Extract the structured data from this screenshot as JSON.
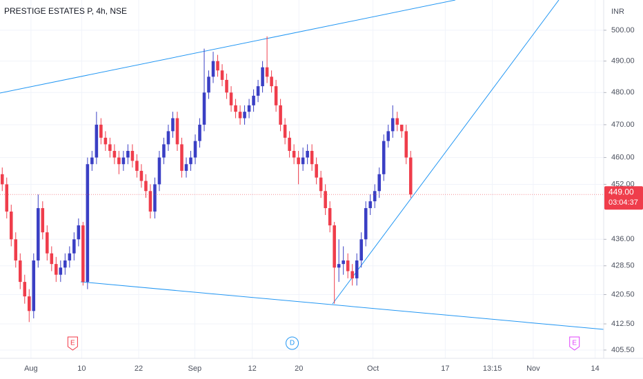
{
  "chart_data": {
    "type": "candlestick",
    "title": "PRESTIGE ESTATES P, 4h, NSE",
    "currency": "INR",
    "log_scale": true,
    "up_color": "#3a3fc4",
    "down_color": "#ef3d4b",
    "xlim": [
      -0.5,
      134
    ],
    "ylim": [
      403.3,
      510
    ],
    "xticks": [
      {
        "value": 6.4,
        "label": "Aug"
      },
      {
        "value": 17.7,
        "label": "10"
      },
      {
        "value": 30.4,
        "label": "22"
      },
      {
        "value": 42.9,
        "label": "Sep"
      },
      {
        "value": 55.7,
        "label": "12"
      },
      {
        "value": 66.1,
        "label": "20"
      },
      {
        "value": 82.6,
        "label": "Oct"
      },
      {
        "value": 98.7,
        "label": "17"
      },
      {
        "value": 109.2,
        "label": "13:15"
      },
      {
        "value": 118.3,
        "label": "Nov"
      },
      {
        "value": 132.1,
        "label": "14"
      }
    ],
    "yticks": [
      {
        "value": 405.5,
        "label": "405.50"
      },
      {
        "value": 412.5,
        "label": "412.50"
      },
      {
        "value": 420.5,
        "label": "420.50"
      },
      {
        "value": 428.5,
        "label": "428.50"
      },
      {
        "value": 436,
        "label": "436.00"
      },
      {
        "value": 452,
        "label": "452.00"
      },
      {
        "value": 460,
        "label": "460.00"
      },
      {
        "value": 470,
        "label": "470.00"
      },
      {
        "value": 480,
        "label": "480.00"
      },
      {
        "value": 490,
        "label": "490.00"
      },
      {
        "value": 500,
        "label": "500.00"
      }
    ],
    "last_price": {
      "value": 449,
      "label": "449.00"
    },
    "countdown": "03:04:37",
    "events": [
      {
        "label": "E",
        "x": 15.7,
        "color": "#f23645"
      },
      {
        "label": "D",
        "x": 64.6,
        "color": "#2196f3"
      },
      {
        "label": "E",
        "x": 127.5,
        "color": "#e040fb"
      }
    ],
    "open": [
      455,
      452,
      444,
      436,
      430,
      424,
      420,
      416,
      430,
      445,
      438,
      432,
      429,
      426,
      428,
      430,
      432,
      436,
      440,
      424,
      458,
      460,
      470,
      466,
      464,
      462,
      460,
      458,
      460,
      462,
      459,
      456,
      453,
      450,
      444,
      452,
      460,
      464,
      468,
      472,
      464,
      456,
      458,
      460,
      465,
      470,
      480,
      485,
      490,
      487,
      484,
      480,
      476,
      474,
      472,
      474,
      476,
      479,
      482,
      488,
      485,
      482,
      476,
      470,
      466,
      462,
      460,
      458,
      460,
      462,
      458,
      454,
      450,
      445,
      440,
      428,
      429,
      430,
      427,
      425,
      430,
      436,
      445,
      447,
      450,
      455,
      465,
      468,
      472,
      470,
      468,
      460
    ],
    "high": [
      457,
      454,
      446,
      438,
      432,
      426,
      422,
      432,
      449,
      447,
      440,
      434,
      431,
      430,
      432,
      434,
      438,
      442,
      441,
      460,
      462,
      474,
      472,
      468,
      466,
      464,
      462,
      462,
      464,
      464,
      461,
      458,
      455,
      452,
      454,
      462,
      466,
      470,
      474,
      474,
      466,
      460,
      462,
      467,
      472,
      494,
      487,
      493,
      492,
      489,
      486,
      482,
      478,
      476,
      476,
      478,
      481,
      484,
      490,
      498,
      487,
      484,
      478,
      472,
      468,
      464,
      462,
      463,
      464,
      464,
      460,
      456,
      452,
      447,
      441,
      436,
      434,
      432,
      429,
      432,
      438,
      447,
      449,
      452,
      457,
      467,
      470,
      476,
      474,
      470,
      470,
      462
    ],
    "low": [
      450,
      442,
      434,
      428,
      422,
      418,
      413,
      414,
      428,
      436,
      430,
      427,
      424,
      424,
      426,
      428,
      430,
      434,
      423,
      422,
      456,
      458,
      464,
      462,
      460,
      458,
      455,
      456,
      458,
      457,
      454,
      451,
      448,
      442,
      442,
      450,
      458,
      462,
      466,
      462,
      454,
      454,
      456,
      458,
      463,
      468,
      478,
      483,
      485,
      482,
      478,
      474,
      472,
      470,
      470,
      472,
      474,
      477,
      480,
      483,
      480,
      474,
      468,
      464,
      460,
      458,
      452,
      456,
      458,
      456,
      452,
      448,
      443,
      438,
      418,
      424,
      426,
      425,
      423,
      423,
      428,
      434,
      443,
      445,
      448,
      453,
      463,
      466,
      468,
      466,
      458,
      448
    ],
    "close": [
      452,
      444,
      436,
      430,
      424,
      420,
      416,
      430,
      445,
      438,
      432,
      429,
      426,
      428,
      430,
      432,
      436,
      440,
      424,
      458,
      460,
      470,
      466,
      464,
      462,
      460,
      458,
      460,
      462,
      459,
      456,
      453,
      450,
      444,
      452,
      460,
      464,
      468,
      472,
      464,
      456,
      458,
      460,
      465,
      470,
      480,
      485,
      490,
      487,
      484,
      480,
      476,
      474,
      472,
      474,
      476,
      479,
      482,
      488,
      485,
      482,
      476,
      470,
      466,
      462,
      460,
      458,
      460,
      462,
      458,
      454,
      450,
      445,
      440,
      428,
      429,
      430,
      427,
      425,
      430,
      436,
      445,
      447,
      450,
      455,
      465,
      468,
      472,
      470,
      468,
      460,
      449
    ]
  }
}
